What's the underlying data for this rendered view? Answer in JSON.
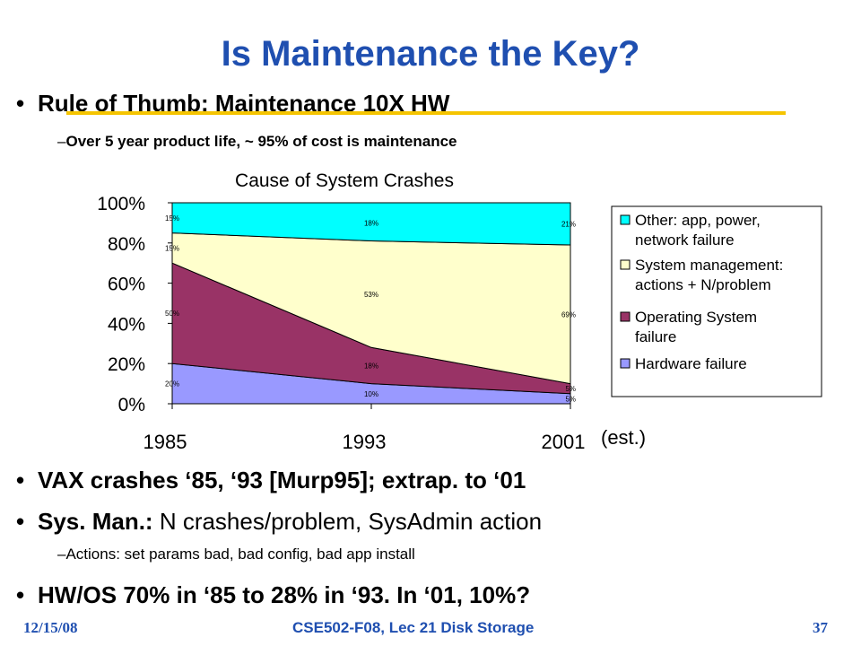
{
  "slide": {
    "title": "Is Maintenance the Key?",
    "bullets": [
      {
        "text": "Rule of Thumb: Maintenance 10X HW"
      },
      {
        "bold": "VAX crashes ‘85, ‘93 [Murp95]; extrap. to ‘01"
      },
      {
        "bold": "Sys. Man.:",
        "rest": " N crashes/problem, SysAdmin action"
      },
      {
        "text": "HW/OS 70% in ‘85 to 28% in ‘93. In ‘01, 10%?"
      }
    ],
    "subs": [
      "Over 5 year product life, ~ 95% of cost is maintenance",
      "Actions: set params bad, bad config, bad app install"
    ],
    "bullet_glyph": "•",
    "dash_glyph": "–",
    "footer": {
      "date": "12/15/08",
      "course": "CSE502-F08, Lec 21 Disk Storage",
      "page": "37"
    }
  },
  "colors": {
    "title": "#1f4fb0",
    "rule": "#f5c400",
    "hardware": "#9999ff",
    "os": "#993366",
    "sysman": "#ffffcc",
    "other": "#00ffff"
  },
  "chart_data": {
    "type": "area",
    "stacked": true,
    "title": "Cause of System Crashes",
    "x": [
      "1985",
      "1993",
      "2001"
    ],
    "x_note": "(est.)",
    "ylim": [
      0,
      100
    ],
    "yticks": [
      "0%",
      "20%",
      "40%",
      "60%",
      "80%",
      "100%"
    ],
    "legend_position": "right",
    "series": [
      {
        "name": "Hardware failure",
        "values": [
          20,
          10,
          5
        ],
        "labels": [
          "20%",
          "10%",
          "5%"
        ]
      },
      {
        "name": "Operating System failure",
        "values": [
          50,
          18,
          5
        ],
        "labels": [
          "50%",
          "18%",
          "5%"
        ]
      },
      {
        "name": "System management: actions + N/problem",
        "values": [
          15,
          53,
          69
        ],
        "labels": [
          "15%",
          "53%",
          "69%"
        ]
      },
      {
        "name": "Other: app, power, network failure",
        "values": [
          15,
          18,
          21
        ],
        "labels": [
          "15%",
          "18%",
          "21%"
        ]
      }
    ]
  }
}
